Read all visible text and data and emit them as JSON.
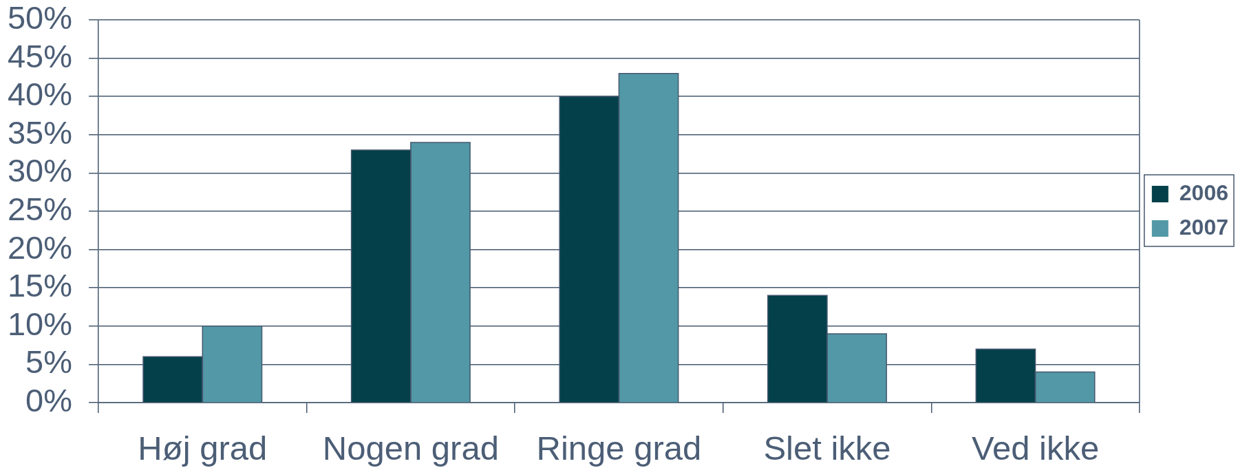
{
  "chart_data": {
    "type": "bar",
    "categories": [
      "Høj grad",
      "Nogen grad",
      "Ringe grad",
      "Slet ikke",
      "Ved ikke"
    ],
    "series": [
      {
        "name": "2006",
        "color": "#03404a",
        "values": [
          6,
          33,
          40,
          14,
          7
        ]
      },
      {
        "name": "2007",
        "color": "#5398a7",
        "values": [
          10,
          34,
          43,
          9,
          4
        ]
      }
    ],
    "ylim": [
      0,
      50
    ],
    "yticks": [
      {
        "value": 0,
        "label": "0%"
      },
      {
        "value": 5,
        "label": "5%"
      },
      {
        "value": 10,
        "label": "10%"
      },
      {
        "value": 15,
        "label": "15%"
      },
      {
        "value": 20,
        "label": "20%"
      },
      {
        "value": 25,
        "label": "25%"
      },
      {
        "value": 30,
        "label": "30%"
      },
      {
        "value": 35,
        "label": "35%"
      },
      {
        "value": 40,
        "label": "40%"
      },
      {
        "value": 45,
        "label": "45%"
      },
      {
        "value": 50,
        "label": "50%"
      }
    ],
    "grid": "y",
    "legend": "right"
  }
}
